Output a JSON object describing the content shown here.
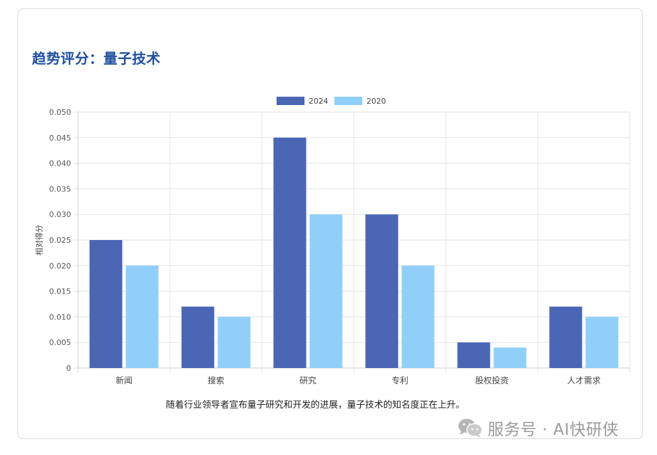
{
  "title": "趋势评分：量子技术",
  "caption": "随着行业领导者宣布量子研究和开发的进展，量子技术的知名度正在上升。",
  "watermark": "服务号 · AI快研侠",
  "chart_data": {
    "type": "bar",
    "title": "趋势评分：量子技术",
    "xlabel": "",
    "ylabel": "相对得分",
    "ylim": [
      0,
      0.05
    ],
    "yticks": [
      "0",
      "0.005",
      "0.010",
      "0.015",
      "0.020",
      "0.025",
      "0.030",
      "0.035",
      "0.040",
      "0.045",
      "0.050"
    ],
    "categories": [
      "新闻",
      "搜索",
      "研究",
      "专利",
      "股权投资",
      "人才需求"
    ],
    "series": [
      {
        "name": "2024",
        "color": "#4a66b5",
        "values": [
          0.025,
          0.012,
          0.045,
          0.03,
          0.005,
          0.012
        ]
      },
      {
        "name": "2020",
        "color": "#90cff8",
        "values": [
          0.02,
          0.01,
          0.03,
          0.02,
          0.004,
          0.01
        ]
      }
    ],
    "legend": "top-center",
    "grid": true
  }
}
